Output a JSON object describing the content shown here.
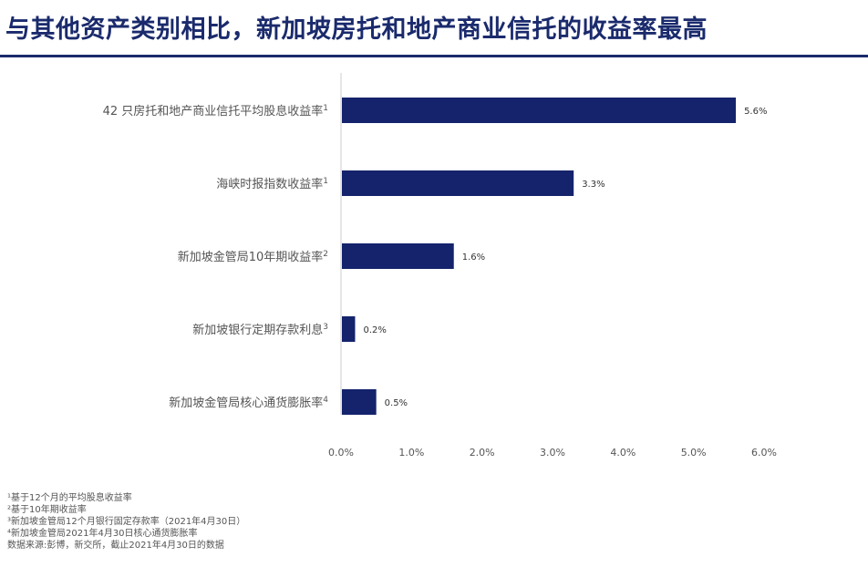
{
  "title": "与其他资产类别相比，新加坡房托和地产商业信托的收益率最高",
  "colors": {
    "bar": "#14236b",
    "title": "#1a2a6c",
    "axis": "#cccccc",
    "text": "#555555"
  },
  "chart_data": {
    "type": "bar",
    "orientation": "horizontal",
    "categories": [
      {
        "label": "42 只房托和地产商业信托平均股息收益率",
        "sup": "1"
      },
      {
        "label": "海峡时报指数收益率",
        "sup": "1"
      },
      {
        "label": "新加坡金管局10年期收益率",
        "sup": "2"
      },
      {
        "label": "新加坡银行定期存款利息",
        "sup": "3"
      },
      {
        "label": "新加坡金管局核心通货膨胀率",
        "sup": "4"
      }
    ],
    "values": [
      5.6,
      3.3,
      1.6,
      0.2,
      0.5
    ],
    "value_labels": [
      "5.6%",
      "3.3%",
      "1.6%",
      "0.2%",
      "0.5%"
    ],
    "xlim": [
      0,
      6
    ],
    "xticks": [
      "0.0%",
      "1.0%",
      "2.0%",
      "3.0%",
      "4.0%",
      "5.0%",
      "6.0%"
    ],
    "grid": false
  },
  "footnotes": [
    "¹基于12个月的平均股息收益率",
    "²基于10年期收益率",
    "³新加坡金管局12个月银行固定存款率（2021年4月30日）",
    "⁴新加坡金管局2021年4月30日核心通货膨胀率",
    "数据来源:彭博，新交所，截止2021年4月30日的数据"
  ]
}
